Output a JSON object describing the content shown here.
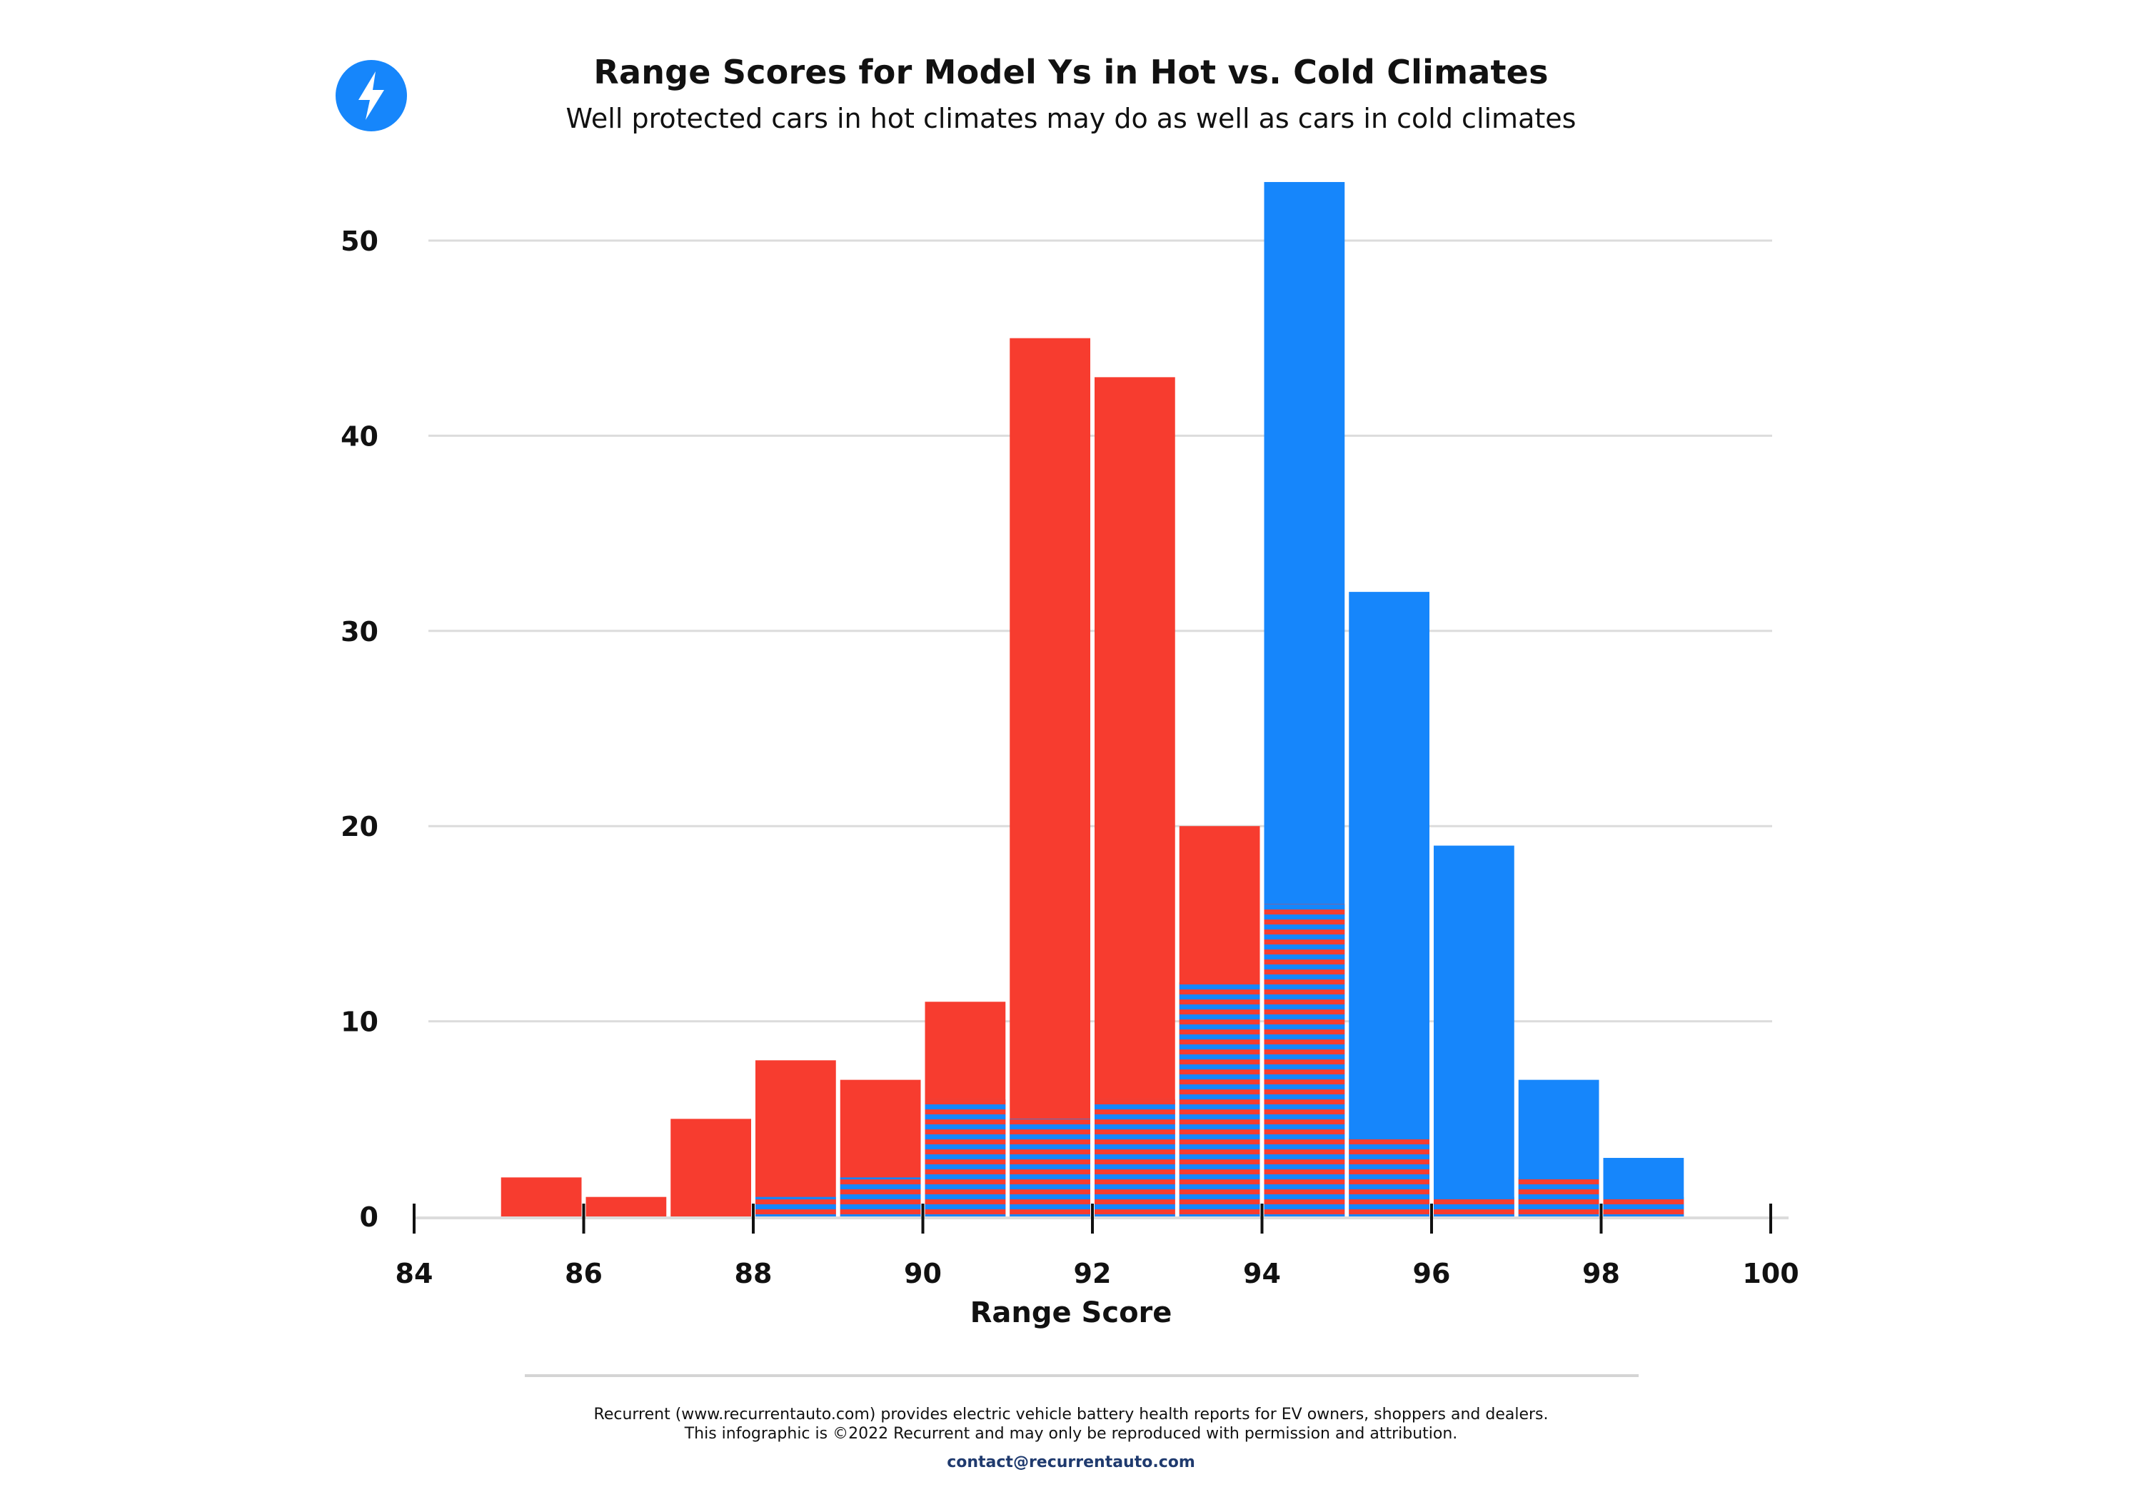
{
  "header": {
    "title": "Range Scores for Model Ys in Hot vs. Cold Climates",
    "subtitle": "Well protected cars in hot climates may do as well as cars in cold climates"
  },
  "logo": {
    "icon": "lightning-bolt-icon",
    "color": "#1686fb"
  },
  "footer": {
    "line1": "Recurrent (www.recurrentauto.com) provides electric vehicle battery health reports for EV owners, shoppers and dealers.",
    "line2": "This infographic is ©2022 Recurrent and may only be reproduced with permission and attribution.",
    "contact": "contact@recurrentauto.com"
  },
  "chart_data": {
    "type": "bar",
    "title": "Range Scores for Model Ys in Hot vs. Cold Climates",
    "subtitle": "Well protected cars in hot climates may do as well as cars in cold climates",
    "xlabel": "Range Score",
    "ylabel": "",
    "xlim": [
      84,
      100
    ],
    "ylim": [
      0,
      53
    ],
    "xticks": [
      84,
      86,
      88,
      90,
      92,
      94,
      96,
      98,
      100
    ],
    "yticks": [
      0,
      10,
      20,
      30,
      40,
      50
    ],
    "bin_width": 1,
    "x": [
      85,
      86,
      87,
      88,
      89,
      90,
      91,
      92,
      93,
      94,
      95,
      96,
      97,
      98
    ],
    "grid": "horizontal",
    "overlap_pattern": "red-blue stripes",
    "series": [
      {
        "color": "#f73c2f",
        "values": [
          2,
          1,
          5,
          8,
          7,
          11,
          45,
          43,
          20,
          16,
          4,
          1,
          2,
          1
        ]
      },
      {
        "color": "#1686fb",
        "values": [
          0,
          0,
          0,
          1,
          2,
          6,
          5,
          6,
          12,
          53,
          32,
          19,
          7,
          3
        ]
      }
    ]
  }
}
